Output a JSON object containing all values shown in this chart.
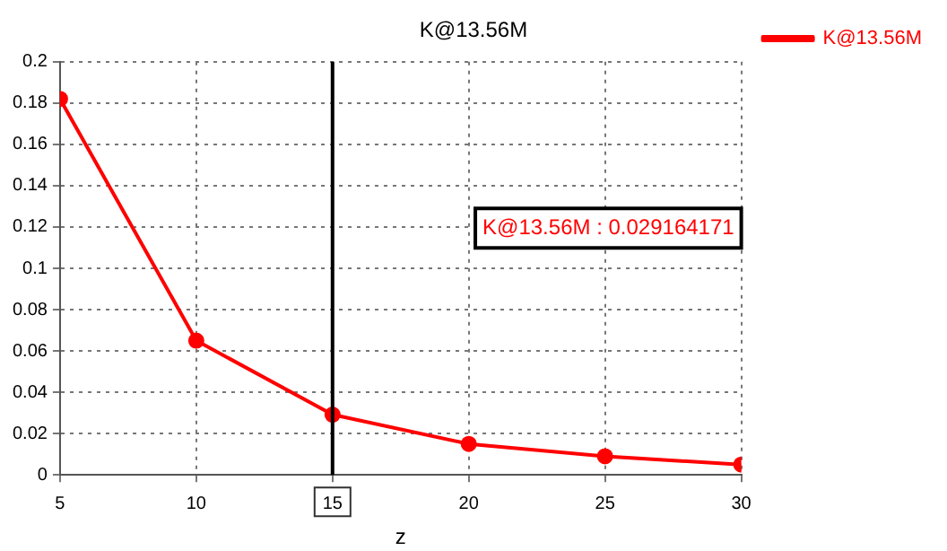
{
  "chart_data": {
    "type": "line",
    "title": "K@13.56M",
    "xlabel": "z",
    "x": [
      5,
      10,
      15,
      20,
      25,
      30
    ],
    "series": [
      {
        "name": "K@13.56M",
        "color": "#ff0000",
        "values": [
          0.182,
          0.065,
          0.029164171,
          0.015,
          0.009,
          0.005
        ]
      }
    ],
    "xlim": [
      5,
      30
    ],
    "xticks": [
      5,
      10,
      15,
      20,
      25,
      30
    ],
    "ylim": [
      0,
      0.2
    ],
    "yticks": [
      0,
      0.02,
      0.04,
      0.06,
      0.08,
      0.1,
      0.12,
      0.14,
      0.16,
      0.18,
      0.2
    ],
    "ref_lines": [
      {
        "axis": "x",
        "value": 15,
        "color": "#000000"
      }
    ],
    "annotations": [
      "K@13.56M : 0.029164171"
    ],
    "grid": true,
    "legend": "top right",
    "marker": "circle",
    "line_style": "solid"
  }
}
